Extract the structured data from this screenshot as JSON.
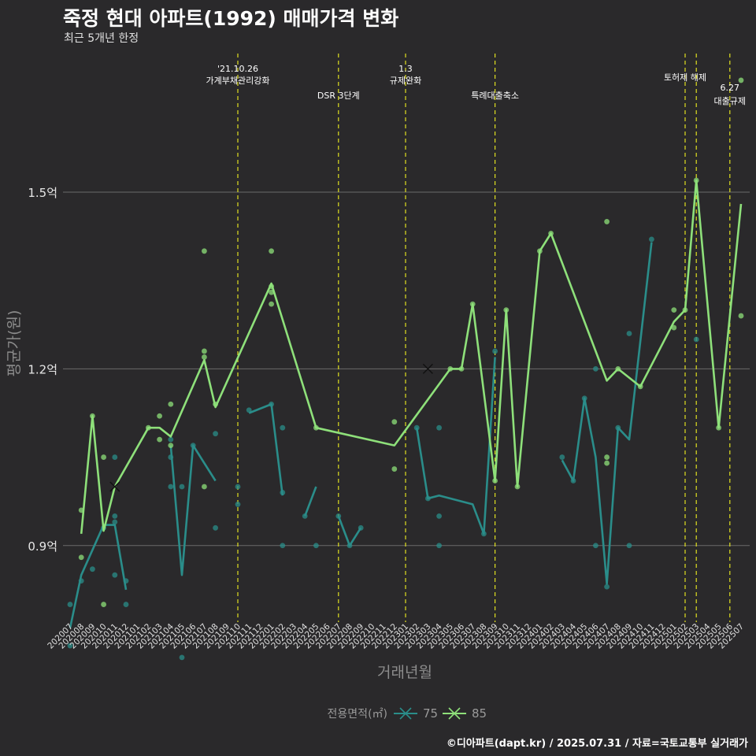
{
  "title": "죽정 현대 아파트(1992) 매매가격 변화",
  "subtitle": "최근 5개년 한정",
  "caption": "©디아파트(dapt.kr) / 2025.07.31 / 자료=국토교통부 실거래가",
  "colors": {
    "background": "#2a292b",
    "grid": "#6b6b6b",
    "event_line": "#e0e020",
    "series_75": "#2a8d8a",
    "series_85": "#8ee07a"
  },
  "chart_data": {
    "type": "line",
    "xlabel": "거래년월",
    "ylabel": "평균가(원)",
    "ylim": [
      0.77,
      1.73
    ],
    "y_ticks": [
      0.9,
      1.2,
      1.5
    ],
    "y_tick_labels": [
      "0.9억",
      "1.2억",
      "1.5억"
    ],
    "y_unit": "억",
    "grid": "horizontal",
    "legend": {
      "title": "전용면적(㎡)",
      "position": "bottom"
    },
    "categories": [
      "202007",
      "202008",
      "202009",
      "202010",
      "202011",
      "202012",
      "202101",
      "202102",
      "202103",
      "202104",
      "202105",
      "202106",
      "202107",
      "202108",
      "202109",
      "202110",
      "202111",
      "202112",
      "202201",
      "202202",
      "202203",
      "202204",
      "202205",
      "202206",
      "202207",
      "202208",
      "202209",
      "202210",
      "202211",
      "202212",
      "202301",
      "202302",
      "202303",
      "202304",
      "202305",
      "202306",
      "202307",
      "202308",
      "202309",
      "202310",
      "202311",
      "202312",
      "202401",
      "202402",
      "202403",
      "202404",
      "202405",
      "202406",
      "202407",
      "202408",
      "202409",
      "202410",
      "202411",
      "202412",
      "202501",
      "202502",
      "202503",
      "202504",
      "202505",
      "202506",
      "202507"
    ],
    "series": [
      {
        "name": "75",
        "line": [
          [
            "202007",
            0.76
          ],
          [
            "202008",
            0.85
          ],
          [
            "202010",
            0.935
          ],
          [
            "202011",
            0.935
          ],
          [
            "202012",
            0.825
          ],
          null,
          [
            "202104",
            1.07
          ],
          [
            "202105",
            0.85
          ],
          [
            "202106",
            1.07
          ],
          [
            "202108",
            1.01
          ],
          null,
          [
            "202111",
            1.125
          ],
          [
            "202201",
            1.14
          ],
          [
            "202202",
            0.985
          ],
          null,
          [
            "202204",
            0.95
          ],
          [
            "202205",
            1.0
          ],
          null,
          [
            "202207",
            0.95
          ],
          [
            "202208",
            0.9
          ],
          [
            "202209",
            0.93
          ],
          null,
          [
            "202302",
            1.1
          ],
          [
            "202303",
            0.98
          ],
          [
            "202304",
            0.985
          ],
          [
            "202307",
            0.97
          ],
          [
            "202308",
            0.92
          ],
          [
            "202309",
            1.22
          ],
          null,
          [
            "202403",
            1.045
          ],
          [
            "202404",
            1.01
          ],
          [
            "202405",
            1.15
          ],
          [
            "202406",
            1.05
          ],
          [
            "202407",
            0.835
          ],
          [
            "202408",
            1.1
          ],
          [
            "202409",
            1.08
          ],
          [
            "202411",
            1.415
          ],
          null,
          [
            "202503",
            1.25
          ]
        ],
        "points": [
          [
            "202007",
            0.8
          ],
          [
            "202007",
            0.73
          ],
          [
            "202008",
            0.84
          ],
          [
            "202009",
            0.86
          ],
          [
            "202010",
            0.93
          ],
          [
            "202011",
            0.94
          ],
          [
            "202011",
            0.95
          ],
          [
            "202011",
            1.05
          ],
          [
            "202011",
            0.85
          ],
          [
            "202012",
            0.84
          ],
          [
            "202012",
            0.8
          ],
          [
            "202104",
            1.08
          ],
          [
            "202104",
            1.05
          ],
          [
            "202104",
            1.0
          ],
          [
            "202105",
            1.0
          ],
          [
            "202105",
            0.71
          ],
          [
            "202106",
            1.07
          ],
          [
            "202108",
            1.09
          ],
          [
            "202108",
            0.93
          ],
          [
            "202110",
            1.0
          ],
          [
            "202110",
            0.97
          ],
          [
            "202111",
            1.13
          ],
          [
            "202201",
            1.14
          ],
          [
            "202202",
            1.1
          ],
          [
            "202202",
            0.99
          ],
          [
            "202202",
            0.9
          ],
          [
            "202204",
            0.95
          ],
          [
            "202205",
            0.9
          ],
          [
            "202207",
            0.95
          ],
          [
            "202208",
            0.9
          ],
          [
            "202209",
            0.93
          ],
          [
            "202302",
            1.1
          ],
          [
            "202303",
            0.98
          ],
          [
            "202304",
            1.1
          ],
          [
            "202304",
            0.95
          ],
          [
            "202304",
            0.9
          ],
          [
            "202308",
            0.92
          ],
          [
            "202309",
            1.23
          ],
          [
            "202403",
            1.05
          ],
          [
            "202404",
            1.01
          ],
          [
            "202405",
            1.15
          ],
          [
            "202406",
            1.2
          ],
          [
            "202406",
            0.9
          ],
          [
            "202407",
            0.83
          ],
          [
            "202408",
            1.1
          ],
          [
            "202409",
            1.26
          ],
          [
            "202409",
            0.9
          ],
          [
            "202411",
            1.42
          ],
          [
            "202503",
            1.25
          ]
        ],
        "crosses": []
      },
      {
        "name": "85",
        "line": [
          [
            "202008",
            0.92
          ],
          [
            "202009",
            1.12
          ],
          [
            "202010",
            0.925
          ],
          [
            "202011",
            1.0
          ],
          [
            "202102",
            1.1
          ],
          [
            "202103",
            1.1
          ],
          [
            "202104",
            1.085
          ],
          [
            "202107",
            1.215
          ],
          [
            "202108",
            1.135
          ],
          [
            "202201",
            1.345
          ],
          [
            "202205",
            1.1
          ],
          [
            "202212",
            1.07
          ],
          [
            "202305",
            1.2
          ],
          [
            "202306",
            1.2
          ],
          [
            "202307",
            1.31
          ],
          [
            "202309",
            1.01
          ],
          [
            "202310",
            1.3
          ],
          [
            "202311",
            1.0
          ],
          [
            "202401",
            1.4
          ],
          [
            "202402",
            1.43
          ],
          [
            "202407",
            1.18
          ],
          [
            "202408",
            1.2
          ],
          [
            "202410",
            1.17
          ],
          [
            "202501",
            1.28
          ],
          [
            "202502",
            1.3
          ],
          [
            "202503",
            1.52
          ],
          [
            "202505",
            1.1
          ],
          [
            "202507",
            1.48
          ]
        ],
        "points": [
          [
            "202008",
            0.96
          ],
          [
            "202008",
            0.88
          ],
          [
            "202009",
            1.12
          ],
          [
            "202010",
            1.05
          ],
          [
            "202010",
            0.8
          ],
          [
            "202102",
            1.1
          ],
          [
            "202103",
            1.12
          ],
          [
            "202103",
            1.08
          ],
          [
            "202104",
            1.14
          ],
          [
            "202104",
            1.07
          ],
          [
            "202107",
            1.22
          ],
          [
            "202107",
            1.23
          ],
          [
            "202107",
            1.4
          ],
          [
            "202107",
            1.0
          ],
          [
            "202108",
            1.14
          ],
          [
            "202201",
            1.34
          ],
          [
            "202201",
            1.4
          ],
          [
            "202201",
            1.31
          ],
          [
            "202201",
            1.33
          ],
          [
            "202205",
            1.1
          ],
          [
            "202212",
            1.11
          ],
          [
            "202212",
            1.03
          ],
          [
            "202305",
            1.2
          ],
          [
            "202306",
            1.2
          ],
          [
            "202307",
            1.31
          ],
          [
            "202309",
            1.01
          ],
          [
            "202310",
            1.3
          ],
          [
            "202311",
            1.0
          ],
          [
            "202401",
            1.4
          ],
          [
            "202402",
            1.43
          ],
          [
            "202407",
            1.45
          ],
          [
            "202407",
            1.04
          ],
          [
            "202407",
            1.05
          ],
          [
            "202408",
            1.2
          ],
          [
            "202410",
            1.17
          ],
          [
            "202501",
            1.3
          ],
          [
            "202501",
            1.27
          ],
          [
            "202502",
            1.3
          ],
          [
            "202503",
            1.52
          ],
          [
            "202505",
            1.1
          ],
          [
            "202507",
            1.69
          ],
          [
            "202507",
            1.29
          ]
        ],
        "crosses": [
          [
            "202011",
            1.0
          ],
          [
            "202303",
            1.2
          ]
        ]
      }
    ],
    "event_lines": [
      {
        "x": "202110",
        "label_lines": [
          "'21.10.26",
          "가계부채관리강화"
        ]
      },
      {
        "x": "202207",
        "label_lines": [
          "DSR 3단계"
        ]
      },
      {
        "x": "202301",
        "label_lines": [
          "1.3",
          "규제완화"
        ]
      },
      {
        "x": "202309",
        "label_lines": [
          "특례대출축소"
        ]
      },
      {
        "x": "202502",
        "label_lines": [
          "토허제 해제"
        ]
      },
      {
        "x": "202503",
        "label_lines": []
      },
      {
        "x": "202506",
        "label_lines": [
          "6.27",
          "대출규제"
        ]
      }
    ]
  }
}
